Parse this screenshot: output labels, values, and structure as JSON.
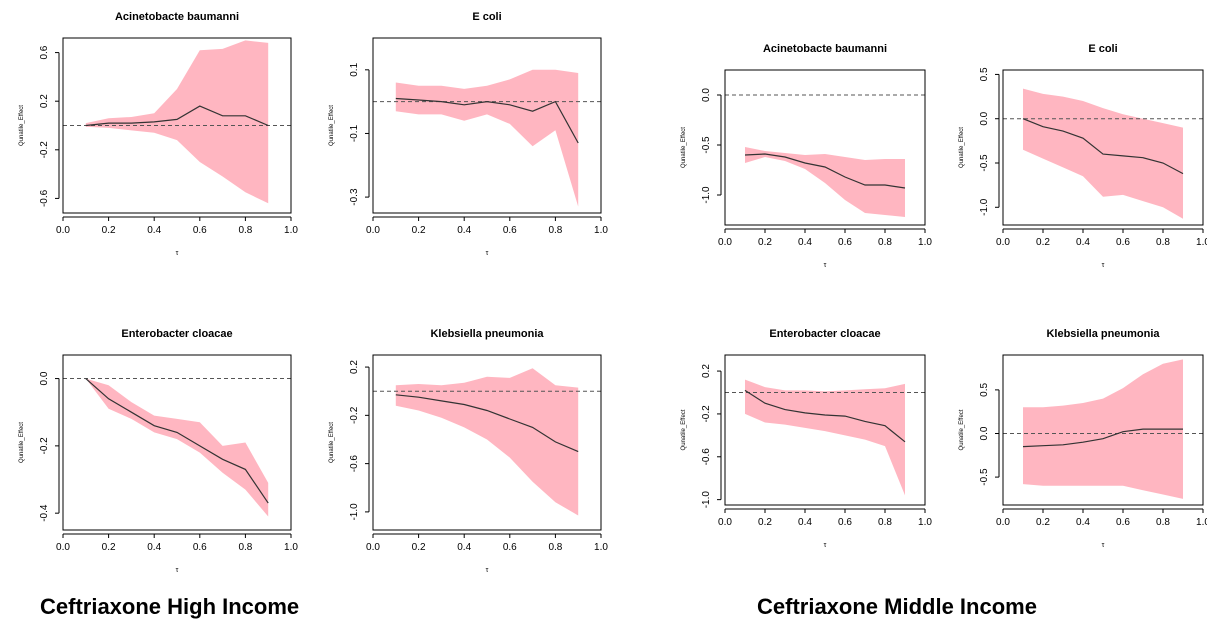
{
  "captions": {
    "left": "Ceftriaxone High Income",
    "right": "Ceftriaxone Middle Income"
  },
  "colors": {
    "band": "#ffb6c1",
    "line": "#333333",
    "zero_line": "#555555",
    "axis": "#000000"
  },
  "chart_data": [
    {
      "type": "area",
      "group": "Ceftriaxone High Income",
      "title": "Acinetobacte baumanni",
      "xlabel": "τ",
      "ylabel": "Qunatile_Effect",
      "xlim": [
        0.0,
        1.0
      ],
      "ylim": [
        -0.72,
        0.72
      ],
      "xticks": [
        "0.0",
        "0.2",
        "0.4",
        "0.6",
        "0.8",
        "1.0"
      ],
      "yticks": [
        {
          "value": -0.6,
          "label": "-0.6"
        },
        {
          "value": -0.2,
          "label": "-0.2"
        },
        {
          "value": 0.2,
          "label": "0.2"
        },
        {
          "value": 0.6,
          "label": "0.6"
        }
      ],
      "x": [
        0.1,
        0.2,
        0.3,
        0.4,
        0.5,
        0.6,
        0.7,
        0.8,
        0.9
      ],
      "estimate": [
        0.0,
        0.02,
        0.02,
        0.03,
        0.05,
        0.16,
        0.08,
        0.08,
        0.0
      ],
      "lower": [
        -0.01,
        -0.02,
        -0.04,
        -0.06,
        -0.12,
        -0.3,
        -0.42,
        -0.55,
        -0.64
      ],
      "upper": [
        0.02,
        0.06,
        0.07,
        0.1,
        0.3,
        0.62,
        0.63,
        0.7,
        0.68
      ],
      "reference": 0.0
    },
    {
      "type": "area",
      "group": "Ceftriaxone High Income",
      "title": "E coli",
      "xlabel": "τ",
      "ylabel": "Qunatile_Effect",
      "xlim": [
        0.0,
        1.0
      ],
      "ylim": [
        -0.35,
        0.2
      ],
      "xticks": [
        "0.0",
        "0.2",
        "0.4",
        "0.6",
        "0.8",
        "1.0"
      ],
      "yticks": [
        {
          "value": -0.3,
          "label": "-0.3"
        },
        {
          "value": -0.1,
          "label": "-0.1"
        },
        {
          "value": 0.1,
          "label": "0.1"
        }
      ],
      "x": [
        0.1,
        0.2,
        0.3,
        0.4,
        0.5,
        0.6,
        0.7,
        0.8,
        0.9
      ],
      "estimate": [
        0.01,
        0.005,
        0.0,
        -0.01,
        0.0,
        -0.01,
        -0.03,
        0.0,
        -0.13
      ],
      "lower": [
        -0.03,
        -0.04,
        -0.04,
        -0.06,
        -0.04,
        -0.07,
        -0.14,
        -0.09,
        -0.33
      ],
      "upper": [
        0.06,
        0.05,
        0.05,
        0.04,
        0.05,
        0.07,
        0.1,
        0.1,
        0.09
      ],
      "reference": 0.0
    },
    {
      "type": "area",
      "group": "Ceftriaxone High Income",
      "title": "Enterobacter cloacae",
      "xlabel": "τ",
      "ylabel": "Qunatile_Effect",
      "xlim": [
        0.0,
        1.0
      ],
      "ylim": [
        -0.45,
        0.07
      ],
      "xticks": [
        "0.0",
        "0.2",
        "0.4",
        "0.6",
        "0.8",
        "1.0"
      ],
      "yticks": [
        {
          "value": -0.4,
          "label": "-0.4"
        },
        {
          "value": -0.2,
          "label": "-0.2"
        },
        {
          "value": 0.0,
          "label": "0.0"
        }
      ],
      "x": [
        0.1,
        0.2,
        0.3,
        0.4,
        0.5,
        0.6,
        0.7,
        0.8,
        0.9
      ],
      "estimate": [
        0.0,
        -0.06,
        -0.1,
        -0.14,
        -0.16,
        -0.2,
        -0.24,
        -0.27,
        -0.37
      ],
      "lower": [
        0.0,
        -0.09,
        -0.12,
        -0.16,
        -0.18,
        -0.22,
        -0.28,
        -0.33,
        -0.41
      ],
      "upper": [
        0.0,
        -0.02,
        -0.07,
        -0.11,
        -0.12,
        -0.13,
        -0.2,
        -0.19,
        -0.31
      ],
      "reference": 0.0
    },
    {
      "type": "area",
      "group": "Ceftriaxone High Income",
      "title": "Klebsiella pneumonia",
      "xlabel": "τ",
      "ylabel": "Qunatile_Effect",
      "xlim": [
        0.0,
        1.0
      ],
      "ylim": [
        -1.15,
        0.3
      ],
      "xticks": [
        "0.0",
        "0.2",
        "0.4",
        "0.6",
        "0.8",
        "1.0"
      ],
      "yticks": [
        {
          "value": -1.0,
          "label": "-1.0"
        },
        {
          "value": -0.6,
          "label": "-0.6"
        },
        {
          "value": -0.2,
          "label": "-0.2"
        },
        {
          "value": 0.2,
          "label": "0.2"
        }
      ],
      "x": [
        0.1,
        0.2,
        0.3,
        0.4,
        0.5,
        0.6,
        0.7,
        0.8,
        0.9
      ],
      "estimate": [
        -0.03,
        -0.05,
        -0.08,
        -0.11,
        -0.16,
        -0.23,
        -0.3,
        -0.42,
        -0.5
      ],
      "lower": [
        -0.12,
        -0.16,
        -0.22,
        -0.3,
        -0.4,
        -0.55,
        -0.75,
        -0.92,
        -1.03
      ],
      "upper": [
        0.05,
        0.06,
        0.05,
        0.07,
        0.12,
        0.11,
        0.19,
        0.05,
        0.03
      ],
      "reference": 0.0
    },
    {
      "type": "area",
      "group": "Ceftriaxone Middle Income",
      "title": "Acinetobacte baumanni",
      "xlabel": "τ",
      "ylabel": "Qunatile_Effect",
      "xlim": [
        0.0,
        1.0
      ],
      "ylim": [
        -1.3,
        0.25
      ],
      "xticks": [
        "0.0",
        "0.2",
        "0.4",
        "0.6",
        "0.8",
        "1.0"
      ],
      "yticks": [
        {
          "value": -1.0,
          "label": "-1.0"
        },
        {
          "value": -0.5,
          "label": "-0.5"
        },
        {
          "value": 0.0,
          "label": "0.0"
        }
      ],
      "x": [
        0.1,
        0.2,
        0.3,
        0.4,
        0.5,
        0.6,
        0.7,
        0.8,
        0.9
      ],
      "estimate": [
        -0.6,
        -0.59,
        -0.62,
        -0.68,
        -0.72,
        -0.82,
        -0.9,
        -0.9,
        -0.93
      ],
      "lower": [
        -0.68,
        -0.62,
        -0.66,
        -0.74,
        -0.88,
        -1.05,
        -1.18,
        -1.2,
        -1.22
      ],
      "upper": [
        -0.52,
        -0.56,
        -0.58,
        -0.6,
        -0.59,
        -0.62,
        -0.65,
        -0.64,
        -0.64
      ],
      "reference": 0.0
    },
    {
      "type": "area",
      "group": "Ceftriaxone Middle Income",
      "title": "E coli",
      "xlabel": "τ",
      "ylabel": "Qunatile_Effect",
      "xlim": [
        0.0,
        1.0
      ],
      "ylim": [
        -1.2,
        0.55
      ],
      "xticks": [
        "0.0",
        "0.2",
        "0.4",
        "0.6",
        "0.8",
        "1.0"
      ],
      "yticks": [
        {
          "value": -1.0,
          "label": "-1.0"
        },
        {
          "value": -0.5,
          "label": "-0.5"
        },
        {
          "value": 0.0,
          "label": "0.0"
        },
        {
          "value": 0.5,
          "label": "0.5"
        }
      ],
      "x": [
        0.1,
        0.2,
        0.3,
        0.4,
        0.5,
        0.6,
        0.7,
        0.8,
        0.9
      ],
      "estimate": [
        0.0,
        -0.09,
        -0.14,
        -0.22,
        -0.4,
        -0.42,
        -0.44,
        -0.5,
        -0.62
      ],
      "lower": [
        -0.35,
        -0.45,
        -0.55,
        -0.65,
        -0.88,
        -0.86,
        -0.93,
        -1.0,
        -1.13
      ],
      "upper": [
        0.34,
        0.28,
        0.25,
        0.2,
        0.12,
        0.05,
        0.0,
        -0.05,
        -0.1
      ],
      "reference": 0.0
    },
    {
      "type": "area",
      "group": "Ceftriaxone Middle Income",
      "title": "Enterobacter cloacae",
      "xlabel": "τ",
      "ylabel": "Qunatile_Effect",
      "xlim": [
        0.0,
        1.0
      ],
      "ylim": [
        -1.05,
        0.35
      ],
      "xticks": [
        "0.0",
        "0.2",
        "0.4",
        "0.6",
        "0.8",
        "1.0"
      ],
      "yticks": [
        {
          "value": -1.0,
          "label": "-1.0"
        },
        {
          "value": -0.6,
          "label": "-0.6"
        },
        {
          "value": -0.2,
          "label": "-0.2"
        },
        {
          "value": 0.2,
          "label": "0.2"
        }
      ],
      "x": [
        0.1,
        0.2,
        0.3,
        0.4,
        0.5,
        0.6,
        0.7,
        0.8,
        0.9
      ],
      "estimate": [
        0.02,
        -0.1,
        -0.16,
        -0.19,
        -0.21,
        -0.22,
        -0.27,
        -0.31,
        -0.46
      ],
      "lower": [
        -0.2,
        -0.28,
        -0.3,
        -0.33,
        -0.36,
        -0.4,
        -0.44,
        -0.5,
        -0.96
      ],
      "upper": [
        0.12,
        0.05,
        0.02,
        0.02,
        0.01,
        0.02,
        0.03,
        0.04,
        0.08
      ],
      "reference": 0.0
    },
    {
      "type": "area",
      "group": "Ceftriaxone Middle Income",
      "title": "Klebsiella pneumonia",
      "xlabel": "τ",
      "ylabel": "Qunatile_Effect",
      "xlim": [
        0.0,
        1.0
      ],
      "ylim": [
        -0.82,
        0.9
      ],
      "xticks": [
        "0.0",
        "0.2",
        "0.4",
        "0.6",
        "0.8",
        "1.0"
      ],
      "yticks": [
        {
          "value": -0.5,
          "label": "-0.5"
        },
        {
          "value": 0.0,
          "label": "0.0"
        },
        {
          "value": 0.5,
          "label": "0.5"
        }
      ],
      "x": [
        0.1,
        0.2,
        0.3,
        0.4,
        0.5,
        0.6,
        0.7,
        0.8,
        0.9
      ],
      "estimate": [
        -0.15,
        -0.14,
        -0.13,
        -0.1,
        -0.06,
        0.02,
        0.05,
        0.05,
        0.05
      ],
      "lower": [
        -0.58,
        -0.6,
        -0.6,
        -0.6,
        -0.6,
        -0.6,
        -0.65,
        -0.7,
        -0.75
      ],
      "upper": [
        0.3,
        0.3,
        0.32,
        0.35,
        0.4,
        0.52,
        0.68,
        0.8,
        0.85
      ],
      "reference": 0.0
    }
  ]
}
